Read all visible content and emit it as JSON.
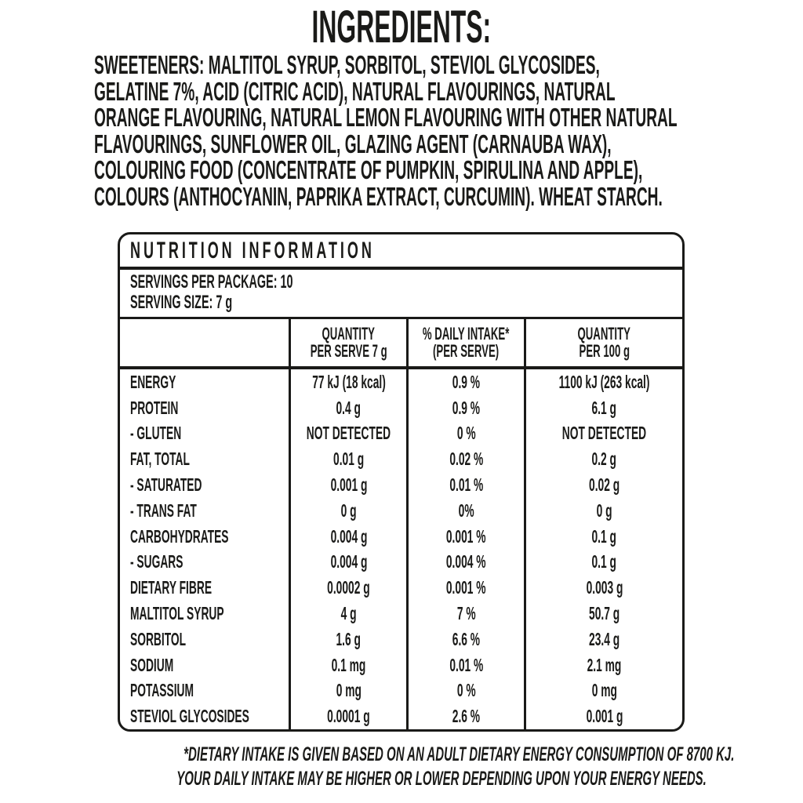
{
  "theme": {
    "ink": "#1a1a18",
    "background": "#ffffff"
  },
  "ingredients": {
    "title": "INGREDIENTS:",
    "lines": [
      "SWEETENERS: MALTITOL SYRUP, SORBITOL, STEVIOL GLYCOSIDES,",
      "GELATINE 7%, ACID (CITRIC ACID), NATURAL FLAVOURINGS, NATURAL",
      "ORANGE FLAVOURING, NATURAL LEMON FLAVOURING WITH OTHER NATURAL",
      "FLAVOURINGS, SUNFLOWER OIL, GLAZING AGENT (CARNAUBA WAX),",
      "COLOURING FOOD (CONCENTRATE OF PUMPKIN, SPIRULINA AND APPLE),",
      "COLOURS (ANTHOCYANIN, PAPRIKA EXTRACT, CURCUMIN). WHEAT STARCH."
    ]
  },
  "nutrition": {
    "title": "NUTRITION INFORMATION",
    "servings_per_package": "SERVINGS PER PACKAGE: 10",
    "serving_size": "SERVING SIZE: 7 g",
    "columns": [
      {
        "line1": "",
        "line2": ""
      },
      {
        "line1": "QUANTITY",
        "line2": "PER SERVE 7 g"
      },
      {
        "line1": "% DAILY INTAKE*",
        "line2": "(PER SERVE)"
      },
      {
        "line1": "QUANTITY",
        "line2": "PER 100 g"
      }
    ],
    "rows": [
      {
        "label": "ENERGY",
        "per_serve": "77 kJ (18 kcal)",
        "daily_intake": "0.9 %",
        "per_100g": "1100 kJ (263 kcal)"
      },
      {
        "label": "PROTEIN",
        "per_serve": "0.4 g",
        "daily_intake": "0.9 %",
        "per_100g": "6.1 g"
      },
      {
        "label": "- GLUTEN",
        "per_serve": "NOT DETECTED",
        "daily_intake": "0 %",
        "per_100g": "NOT DETECTED"
      },
      {
        "label": "FAT, TOTAL",
        "per_serve": "0.01 g",
        "daily_intake": "0.02 %",
        "per_100g": "0.2 g"
      },
      {
        "label": "- SATURATED",
        "per_serve": "0.001 g",
        "daily_intake": "0.01 %",
        "per_100g": "0.02 g"
      },
      {
        "label": "- TRANS FAT",
        "per_serve": "0 g",
        "daily_intake": "0%",
        "per_100g": "0 g"
      },
      {
        "label": "CARBOHYDRATES",
        "per_serve": "0.004 g",
        "daily_intake": "0.001 %",
        "per_100g": "0.1 g"
      },
      {
        "label": "- SUGARS",
        "per_serve": "0.004 g",
        "daily_intake": "0.004 %",
        "per_100g": "0.1 g"
      },
      {
        "label": "DIETARY FIBRE",
        "per_serve": "0.0002 g",
        "daily_intake": "0.001 %",
        "per_100g": "0.003 g"
      },
      {
        "label": "MALTITOL SYRUP",
        "per_serve": "4 g",
        "daily_intake": "7 %",
        "per_100g": "50.7 g"
      },
      {
        "label": "SORBITOL",
        "per_serve": "1.6 g",
        "daily_intake": "6.6 %",
        "per_100g": "23.4 g"
      },
      {
        "label": "SODIUM",
        "per_serve": "0.1 mg",
        "daily_intake": "0.01 %",
        "per_100g": "2.1 mg"
      },
      {
        "label": "POTASSIUM",
        "per_serve": "0 mg",
        "daily_intake": "0 %",
        "per_100g": "0 mg"
      },
      {
        "label": "STEVIOL GLYCOSIDES",
        "per_serve": "0.0001 g",
        "daily_intake": "2.6 %",
        "per_100g": "0.001 g"
      }
    ]
  },
  "footnote": {
    "lines": [
      "*DIETARY INTAKE IS GIVEN BASED ON AN ADULT DIETARY ENERGY CONSUMPTION OF 8700 KJ.",
      "YOUR DAILY INTAKE MAY BE HIGHER OR LOWER DEPENDING UPON YOUR ENERGY NEEDS."
    ]
  }
}
